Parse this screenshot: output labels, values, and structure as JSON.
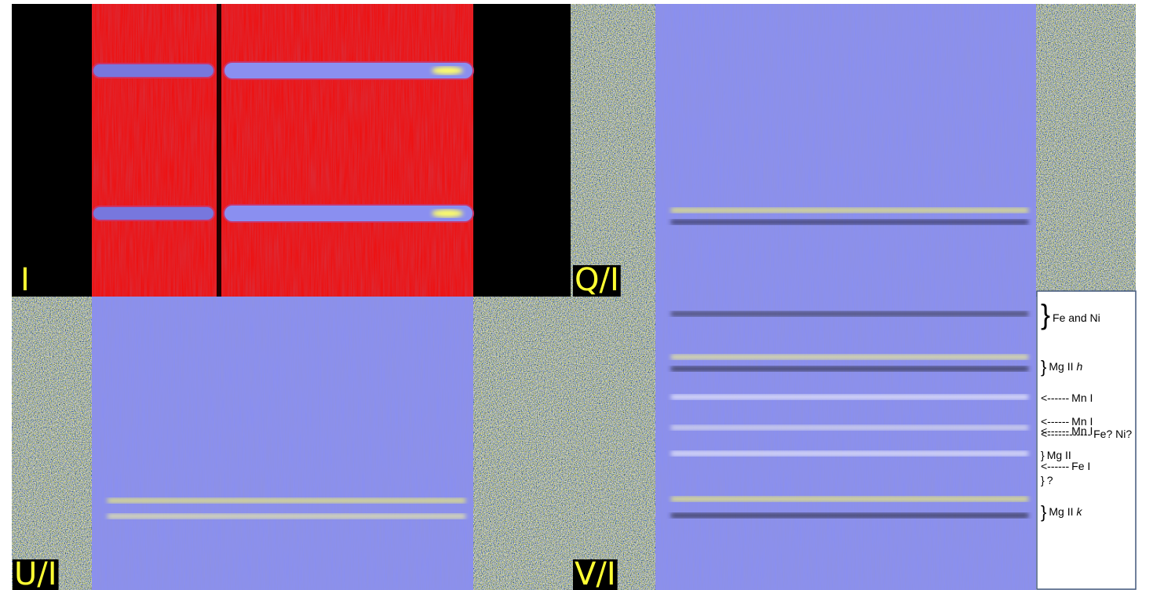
{
  "panels": [
    {
      "label": "I"
    },
    {
      "label": "Q/I"
    },
    {
      "label": "U/I"
    },
    {
      "label": "V/I"
    }
  ],
  "annotations": [
    {
      "marker": "}",
      "text": "Fe and Ni"
    },
    {
      "marker": "}",
      "text": "Mg II",
      "italic": "h"
    },
    {
      "marker": "<------",
      "text": "Mn I"
    },
    {
      "marker": "<------",
      "text": "Mn I"
    },
    {
      "marker": "<------------",
      "text": "Fe? Ni?"
    },
    {
      "marker": "<------",
      "text": "Mn I"
    },
    {
      "marker": "}",
      "text": "Mg II"
    },
    {
      "marker": "<------",
      "text": "Fe I"
    },
    {
      "marker": "}",
      "text": "?"
    },
    {
      "marker": "}",
      "text": "Mg II",
      "italic": "k"
    }
  ]
}
